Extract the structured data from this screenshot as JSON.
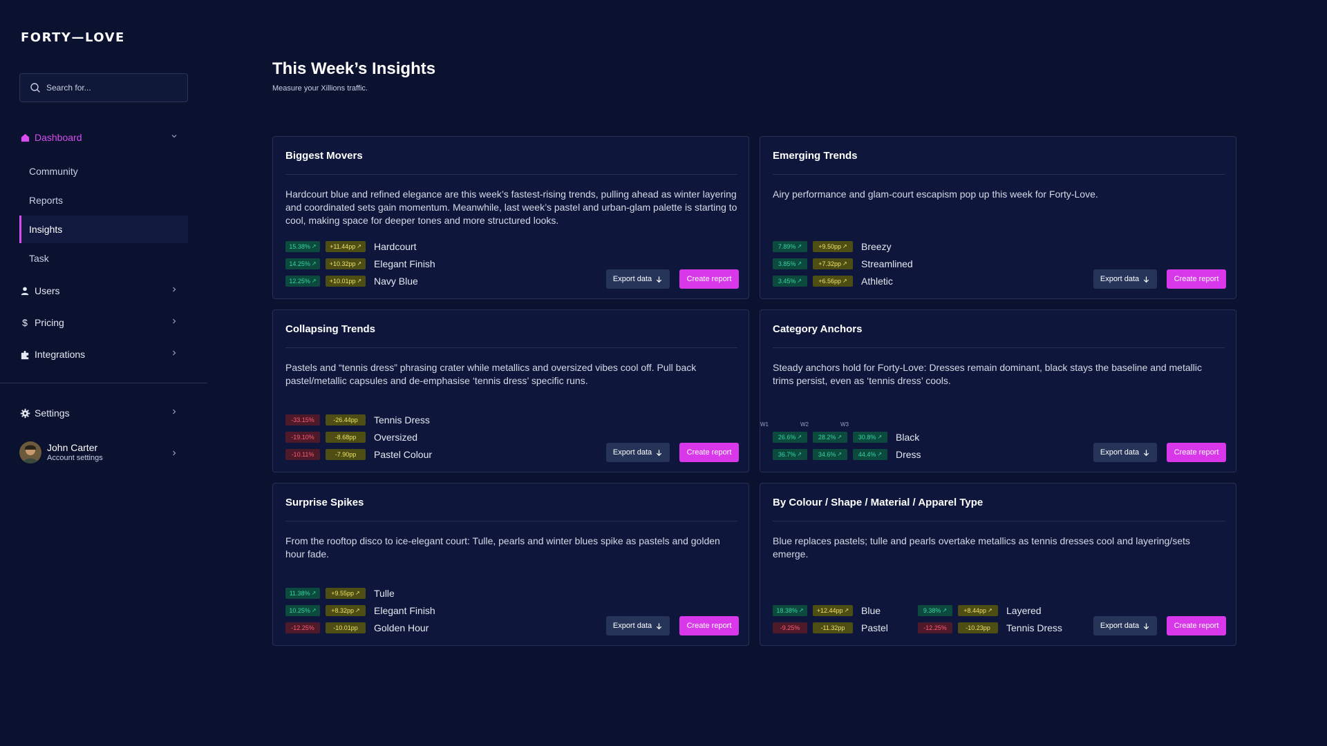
{
  "brand": {
    "logo": "FORTY—LOVE"
  },
  "search": {
    "placeholder": "Search for..."
  },
  "sidebar": {
    "dashboard": "Dashboard",
    "sub": [
      "Community",
      "Reports",
      "Insights",
      "Task"
    ],
    "users": "Users",
    "pricing": "Pricing",
    "integrations": "Integrations",
    "settings": "Settings",
    "user_name": "John Carter",
    "user_sub": "Account settings"
  },
  "header": {
    "title": "This Week’s Insights",
    "subtitle": "Measure your Xillions traffic."
  },
  "buttons": {
    "export": "Export data",
    "create": "Create report"
  },
  "colors": {
    "accent": "#d838ea",
    "up": "#33d6a2",
    "down": "#ff5c72",
    "delta": "#f0e36a"
  },
  "cards": [
    {
      "title": "Biggest Movers",
      "desc": "Hardcourt blue and refined elegance are this week’s fastest-rising trends, pulling ahead as winter layering and coordinated sets gain momentum. Meanwhile, last week’s pastel and urban-glam palette is starting to cool, making space for deeper tones and more structured looks.",
      "rows": [
        {
          "pct": "15.38%",
          "delta": "+11.44pp",
          "label": "Hardcourt",
          "trend": "up"
        },
        {
          "pct": "14.25%",
          "delta": "+10.32pp",
          "label": "Elegant Finish",
          "trend": "up"
        },
        {
          "pct": "12.25%",
          "delta": "+10.01pp",
          "label": "Navy Blue",
          "trend": "up"
        }
      ]
    },
    {
      "title": "Emerging Trends",
      "desc": "Airy performance and glam-court escapism pop up this week for Forty-Love.",
      "rows": [
        {
          "pct": "7.89%",
          "delta": "+9.50pp",
          "label": "Breezy",
          "trend": "up"
        },
        {
          "pct": "3.85%",
          "delta": "+7.32pp",
          "label": "Streamlined",
          "trend": "up"
        },
        {
          "pct": "3.45%",
          "delta": "+6.56pp",
          "label": "Athletic",
          "trend": "up"
        }
      ]
    },
    {
      "title": "Collapsing Trends",
      "desc": "Pastels and “tennis dress” phrasing crater while metallics and oversized vibes cool off. Pull back pastel/metallic capsules and de-emphasise ‘tennis dress’ specific runs.",
      "rows": [
        {
          "pct": "-33.15%",
          "delta": "-26.44pp",
          "label": "Tennis Dress",
          "trend": "down"
        },
        {
          "pct": "-19.10%",
          "delta": "-8.68pp",
          "label": "Oversized",
          "trend": "down"
        },
        {
          "pct": "-10.11%",
          "delta": "-7.90pp",
          "label": "Pastel Colour",
          "trend": "down"
        }
      ]
    },
    {
      "title": "Category Anchors",
      "desc": "Steady anchors hold for Forty-Love: Dresses remain dominant, black stays the baseline and metallic trims persist, even as ‘tennis dress’ cools.",
      "weeks": [
        "W1",
        "W2",
        "W3"
      ],
      "rows": [
        {
          "w1": "26.6%",
          "w2": "28.2%",
          "w3": "30.8%",
          "label": "Black"
        },
        {
          "w1": "36.7%",
          "w2": "34.6%",
          "w3": "44.4%",
          "label": "Dress"
        }
      ]
    },
    {
      "title": "Surprise Spikes",
      "desc": "From the rooftop disco to ice-elegant court: Tulle, pearls and winter blues spike as pastels and golden hour fade.",
      "rows": [
        {
          "pct": "11.38%",
          "delta": "+9.55pp",
          "label": "Tulle",
          "trend": "up"
        },
        {
          "pct": "10.25%",
          "delta": "+8.32pp",
          "label": "Elegant Finish",
          "trend": "up"
        },
        {
          "pct": "-12.25%",
          "delta": "-10.01pp",
          "label": "Golden Hour",
          "trend": "down"
        }
      ]
    },
    {
      "title": "By Colour / Shape / Material / Apparel Type",
      "desc": "Blue replaces pastels; tulle and pearls overtake metallics as tennis dresses cool and layering/sets emerge.",
      "rows": [
        {
          "pct": "18.38%",
          "delta": "+12.44pp",
          "label": "Blue",
          "trend": "up"
        },
        {
          "pct": "-9.25%",
          "delta": "-11.32pp",
          "label": "Pastel",
          "trend": "down"
        }
      ],
      "rows_b": [
        {
          "pct": "9.38%",
          "delta": "+8.44pp",
          "label": "Layered",
          "trend": "up"
        },
        {
          "pct": "-12.25%",
          "delta": "-10.23pp",
          "label": "Tennis Dress",
          "trend": "down"
        }
      ]
    }
  ]
}
